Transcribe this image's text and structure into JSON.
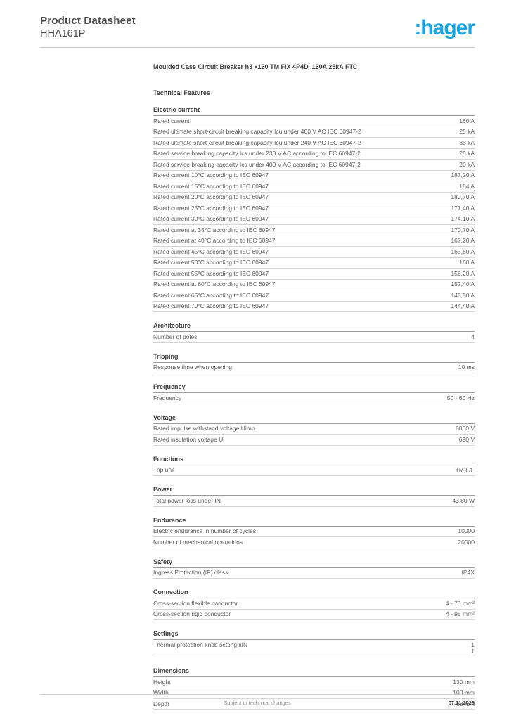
{
  "header": {
    "title": "Product Datasheet",
    "product_code": "HHA161P",
    "logo_text": ":hager",
    "logo_color": "#18a5e0"
  },
  "document": {
    "product_title": "Moulded Case Circuit Breaker h3 x160 TM FIX 4P4D  160A 25kA FTC",
    "features_heading": "Technical Features"
  },
  "sections": [
    {
      "title": "Electric current",
      "rows": [
        {
          "label": "Rated current",
          "value": "160 A"
        },
        {
          "label": "Rated ultimate short-circuit breaking capacity Icu under 400 V AC IEC 60947-2",
          "value": "25 kA"
        },
        {
          "label": "Rated ultimate short-circuit breaking capacity Icu under 240 V AC IEC 60947-2",
          "value": "35 kA"
        },
        {
          "label": "Rated service breaking capacity Ics under 230 V AC according to IEC 60947-2",
          "value": "25 kA"
        },
        {
          "label": "Rated service breaking capacity Ics under 400 V AC according to IEC 60947-2",
          "value": "20 kA"
        },
        {
          "label": "Rated current 10°C according to IEC 60947",
          "value": "187,20 A"
        },
        {
          "label": "Rated current 15°C according to IEC 60947",
          "value": "184 A"
        },
        {
          "label": "Rated current 20°C according to IEC 60947",
          "value": "180,70 A"
        },
        {
          "label": "Rated current 25°C according to IEC 60947",
          "value": "177,40 A"
        },
        {
          "label": "Rated current 30°C according to IEC 60947",
          "value": "174,10 A"
        },
        {
          "label": "Rated current at 35°C according to IEC 60947",
          "value": "170,70 A"
        },
        {
          "label": "Rated current at 40°C according to IEC 60947",
          "value": "167,20 A"
        },
        {
          "label": "Rated current 45°C according to IEC 60947",
          "value": "163,60 A"
        },
        {
          "label": "Rated current 50°C according to IEC 60947",
          "value": "160 A"
        },
        {
          "label": "Rated current 55°C according to IEC 60947",
          "value": "156,20 A"
        },
        {
          "label": "Rated current at 60°C according to IEC 60947",
          "value": "152,40 A"
        },
        {
          "label": "Rated current 65°C according to IEC 60947",
          "value": "148,50 A"
        },
        {
          "label": "Rated current 70°C according to IEC 60947",
          "value": "144,40 A"
        }
      ]
    },
    {
      "title": "Architecture",
      "rows": [
        {
          "label": "Number of poles",
          "value": "4"
        }
      ]
    },
    {
      "title": "Tripping",
      "rows": [
        {
          "label": "Response time when opening",
          "value": "10 ms"
        }
      ]
    },
    {
      "title": "Frequency",
      "rows": [
        {
          "label": "Frequency",
          "value": "50 - 60 Hz"
        }
      ]
    },
    {
      "title": "Voltage",
      "rows": [
        {
          "label": "Rated impulse withstand voltage Uimp",
          "value": "8000 V"
        },
        {
          "label": "Rated insulation voltage Ui",
          "value": "690 V"
        }
      ]
    },
    {
      "title": "Functions",
      "rows": [
        {
          "label": "Trip unit",
          "value": "TM F/F"
        }
      ]
    },
    {
      "title": "Power",
      "rows": [
        {
          "label": "Total power loss under IN",
          "value": "43,80 W"
        }
      ]
    },
    {
      "title": "Endurance",
      "rows": [
        {
          "label": "Electric endurance in number of cycles",
          "value": "10000"
        },
        {
          "label": "Number of mechanical operations",
          "value": "20000"
        }
      ]
    },
    {
      "title": "Safety",
      "rows": [
        {
          "label": "Ingress Protection (IP) class",
          "value": "IP4X"
        }
      ]
    },
    {
      "title": "Connection",
      "rows": [
        {
          "label": "Cross-section flexible conductor",
          "value": "4 - 70 mm²"
        },
        {
          "label": "Cross-section rigid conductor",
          "value": "4 - 95 mm²"
        }
      ]
    },
    {
      "title": "Settings",
      "rows": [
        {
          "label": "Thermal protection knob setting xIN",
          "value": "1\n1"
        }
      ]
    },
    {
      "title": "Dimensions",
      "rows": [
        {
          "label": "Height",
          "value": "130 mm"
        },
        {
          "label": "Width",
          "value": "100 mm"
        },
        {
          "label": "Depth",
          "value": "68 mm"
        }
      ]
    }
  ],
  "footer": {
    "note": "Subject to technical changes",
    "date": "07.11.2025"
  }
}
